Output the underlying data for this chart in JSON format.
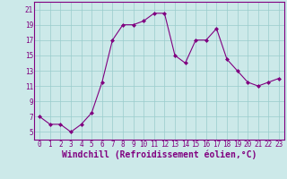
{
  "x": [
    0,
    1,
    2,
    3,
    4,
    5,
    6,
    7,
    8,
    9,
    10,
    11,
    12,
    13,
    14,
    15,
    16,
    17,
    18,
    19,
    20,
    21,
    22,
    23
  ],
  "y": [
    7,
    6,
    6,
    5,
    6,
    7.5,
    11.5,
    17,
    19,
    19,
    19.5,
    20.5,
    20.5,
    15,
    14,
    17,
    17,
    18.5,
    14.5,
    13,
    11.5,
    11,
    11.5,
    12
  ],
  "line_color": "#800080",
  "marker": "D",
  "marker_size": 2,
  "bg_color": "#cce9e9",
  "grid_color": "#99cccc",
  "xlabel": "Windchill (Refroidissement éolien,°C)",
  "xlabel_color": "#800080",
  "xlabel_fontsize": 7,
  "ylim": [
    4,
    22
  ],
  "yticks": [
    5,
    7,
    9,
    11,
    13,
    15,
    17,
    19,
    21
  ],
  "xticks": [
    0,
    1,
    2,
    3,
    4,
    5,
    6,
    7,
    8,
    9,
    10,
    11,
    12,
    13,
    14,
    15,
    16,
    17,
    18,
    19,
    20,
    21,
    22,
    23
  ],
  "tick_color": "#800080",
  "tick_fontsize": 5.5,
  "spine_color": "#800080"
}
